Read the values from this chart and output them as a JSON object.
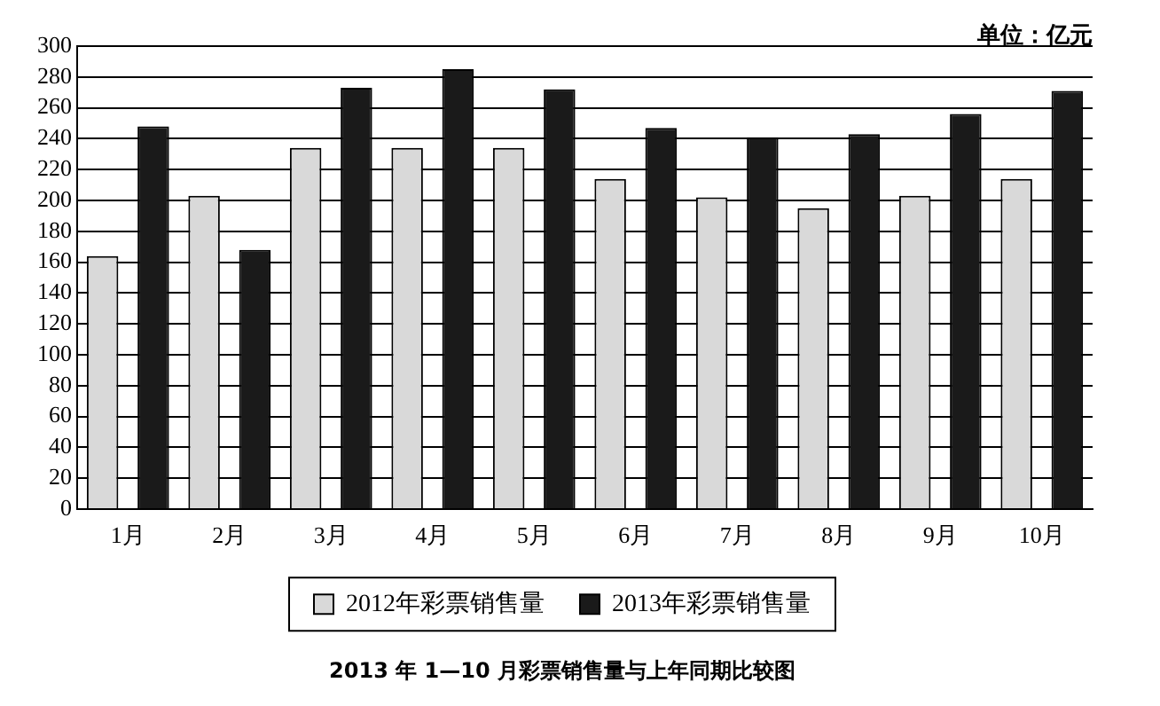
{
  "chart_data": {
    "type": "bar",
    "title": "2013 年 1—10 月彩票销售量与上年同期比较图",
    "annotations": [
      "单位：亿元"
    ],
    "categories": [
      "1月",
      "2月",
      "3月",
      "4月",
      "5月",
      "6月",
      "7月",
      "8月",
      "9月",
      "10月"
    ],
    "series": [
      {
        "name": "2012年彩票销售量",
        "color": "#d9d9d9",
        "values": [
          164,
          203,
          234,
          234,
          234,
          214,
          202,
          195,
          203,
          214
        ]
      },
      {
        "name": "2013年彩票销售量",
        "color": "#1a1a1a",
        "values": [
          248,
          168,
          273,
          285,
          272,
          247,
          241,
          243,
          256,
          271
        ]
      }
    ],
    "ylim": [
      0,
      300
    ],
    "yticks": [
      0,
      20,
      40,
      60,
      80,
      100,
      120,
      140,
      160,
      180,
      200,
      220,
      240,
      260,
      280,
      300
    ],
    "grid": "y",
    "legend": "bottom"
  }
}
